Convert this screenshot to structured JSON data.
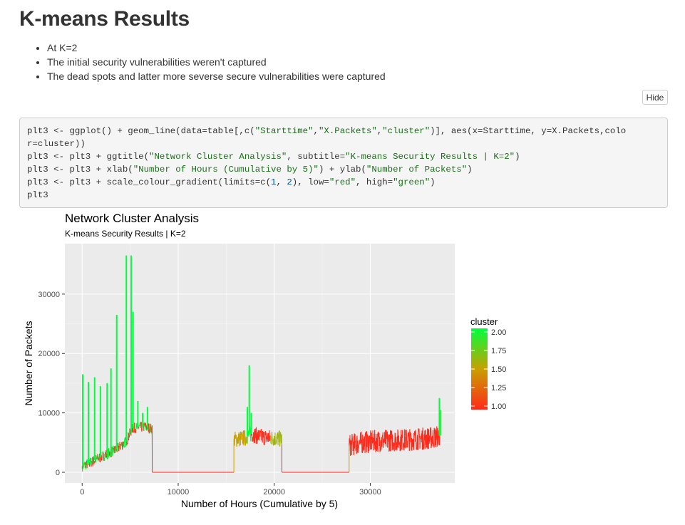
{
  "page": {
    "title": "K-means Results",
    "bullets": [
      "At K=2",
      "The initial security vulnerabilities weren't captured",
      "The dead spots and latter more severse secure vulnerabilities were captured"
    ],
    "hide_label": "Hide"
  },
  "code": {
    "lines": [
      [
        {
          "t": "plt3 <- ggplot() + geom_line(data=table[,c("
        },
        {
          "t": "\"Starttime\"",
          "c": "str"
        },
        {
          "t": ","
        },
        {
          "t": "\"X.Packets\"",
          "c": "str"
        },
        {
          "t": ","
        },
        {
          "t": "\"cluster\"",
          "c": "str"
        },
        {
          "t": ")], aes(x=Starttime, y=X.Packets,colo"
        }
      ],
      [
        {
          "t": "r=cluster))"
        }
      ],
      [
        {
          "t": "plt3 <- plt3 + ggtitle("
        },
        {
          "t": "\"Network Cluster Analysis\"",
          "c": "str"
        },
        {
          "t": ", subtitle="
        },
        {
          "t": "\"K-means Security Results | K=2\"",
          "c": "str"
        },
        {
          "t": ")"
        }
      ],
      [
        {
          "t": "plt3 <- plt3 + xlab("
        },
        {
          "t": "\"Number of Hours (Cumulative by 5)\"",
          "c": "str"
        },
        {
          "t": ") + ylab("
        },
        {
          "t": "\"Number of Packets\"",
          "c": "str"
        },
        {
          "t": ")"
        }
      ],
      [
        {
          "t": "plt3 <- plt3 + scale_colour_gradient(limits=c("
        },
        {
          "t": "1",
          "c": "num"
        },
        {
          "t": ", "
        },
        {
          "t": "2",
          "c": "num"
        },
        {
          "t": "), low="
        },
        {
          "t": "\"red\"",
          "c": "str"
        },
        {
          "t": ", high="
        },
        {
          "t": "\"green\"",
          "c": "str"
        },
        {
          "t": ")"
        }
      ],
      [
        {
          "t": "plt3"
        }
      ]
    ]
  },
  "chart_data": {
    "type": "line",
    "title": "Network Cluster Analysis",
    "subtitle": "K-means Security Results | K=2",
    "xlabel": "Number of Hours (Cumulative by 5)",
    "ylabel": "Number of Packets",
    "xlim": [
      -1800,
      38800
    ],
    "ylim": [
      -1800,
      38500
    ],
    "x_ticks": [
      0,
      10000,
      20000,
      30000
    ],
    "x_tick_labels": [
      "0",
      "10000",
      "20000",
      "30000"
    ],
    "y_ticks": [
      0,
      10000,
      20000,
      30000
    ],
    "y_tick_labels": [
      "0",
      "10000",
      "20000",
      "30000"
    ],
    "grid": true,
    "colors": {
      "low": "#ff2a1a",
      "high": "#00ff3c",
      "panel": "#ebebeb",
      "grid": "#ffffff"
    },
    "legend": {
      "title": "cluster",
      "placement": "right",
      "limits": [
        1,
        2
      ],
      "labels": [
        "2.00",
        "1.75",
        "1.50",
        "1.25",
        "1.00"
      ],
      "values": [
        2.0,
        1.75,
        1.5,
        1.25,
        1.0
      ]
    },
    "segments": [
      {
        "x0": 0,
        "x1": 7300,
        "baseline": [
          [
            0,
            1000
          ],
          [
            800,
            1600
          ],
          [
            2000,
            2600
          ],
          [
            3500,
            3800
          ],
          [
            4600,
            5200
          ],
          [
            5200,
            7400
          ],
          [
            6500,
            7700
          ],
          [
            7300,
            7300
          ]
        ],
        "cluster_split": 0.35,
        "noise": 900,
        "spikes": [
          [
            60,
            16500
          ],
          [
            650,
            15200
          ],
          [
            1300,
            16000
          ],
          [
            1900,
            14500
          ],
          [
            2600,
            15000
          ],
          [
            3000,
            17500
          ],
          [
            3600,
            26500
          ],
          [
            4600,
            36500
          ],
          [
            5100,
            36500
          ],
          [
            5300,
            27000
          ],
          [
            5800,
            12000
          ],
          [
            6300,
            10000
          ],
          [
            6800,
            11000
          ]
        ]
      },
      {
        "x0": 7300,
        "x1": 15800,
        "flat": 0,
        "cluster": 1
      },
      {
        "x0": 15800,
        "x1": 20800,
        "baseline": [
          [
            15800,
            5500
          ],
          [
            17000,
            5800
          ],
          [
            17500,
            6500
          ],
          [
            18500,
            6000
          ],
          [
            20800,
            5600
          ]
        ],
        "noise": 1400,
        "cluster_ranges": [
          [
            15800,
            17200,
            1.5
          ],
          [
            17200,
            17600,
            2.0
          ],
          [
            17600,
            19600,
            1.0
          ],
          [
            19600,
            20800,
            1.6
          ]
        ],
        "spikes": [
          [
            17200,
            11000
          ],
          [
            17400,
            18000
          ],
          [
            17600,
            10000
          ]
        ]
      },
      {
        "x0": 20800,
        "x1": 27800,
        "flat": 0,
        "cluster": 1
      },
      {
        "x0": 27800,
        "x1": 37300,
        "baseline": [
          [
            27800,
            4500
          ],
          [
            29000,
            5000
          ],
          [
            31000,
            5300
          ],
          [
            34000,
            5500
          ],
          [
            36500,
            5800
          ],
          [
            37300,
            6200
          ]
        ],
        "noise": 1900,
        "cluster": 1.0,
        "spikes": [
          [
            37200,
            12500
          ],
          [
            37300,
            10500
          ]
        ]
      }
    ]
  }
}
